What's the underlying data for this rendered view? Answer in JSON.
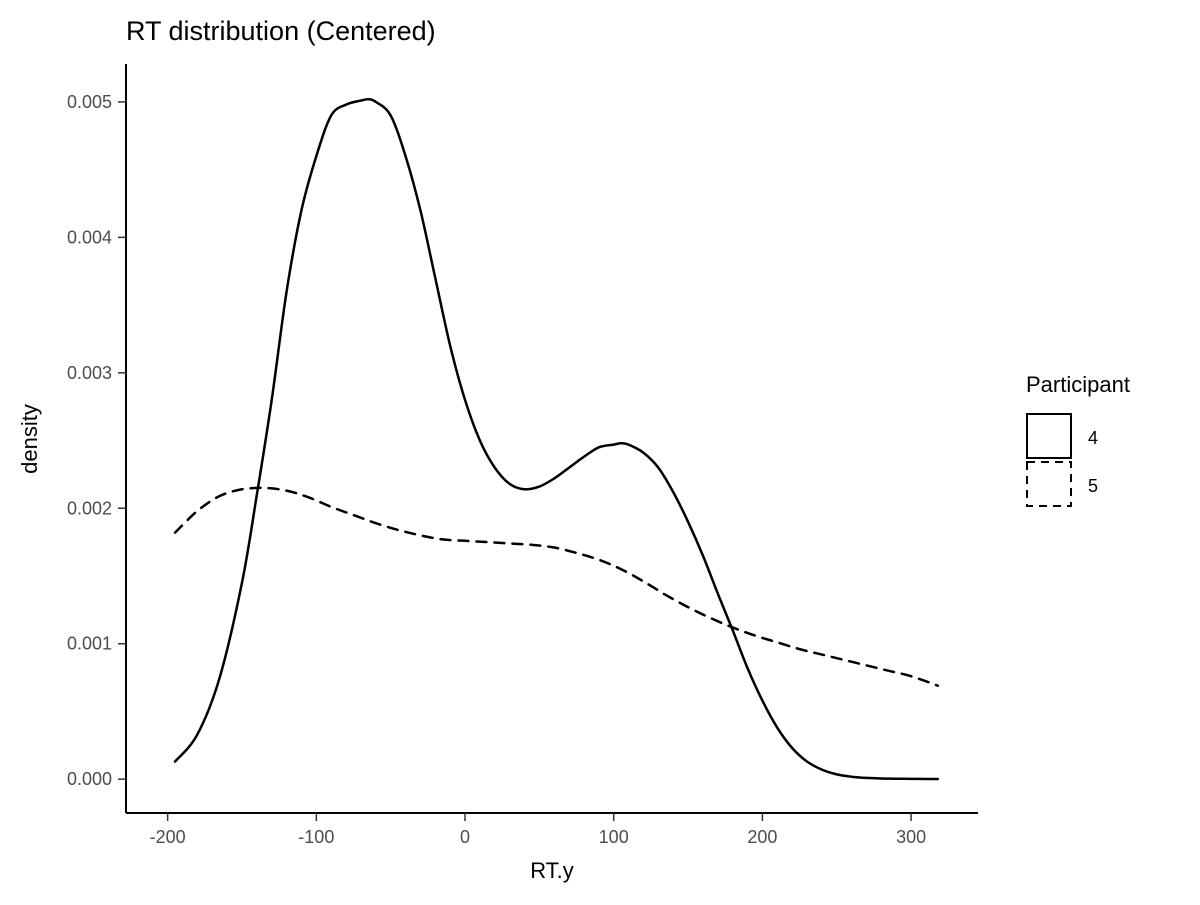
{
  "chart_data": {
    "type": "line",
    "title": "RT distribution (Centered)",
    "xlabel": "RT.y",
    "ylabel": "density",
    "xlim": [
      -228,
      345
    ],
    "ylim": [
      -0.00025,
      0.00528
    ],
    "x_ticks": [
      -200,
      -100,
      0,
      100,
      200,
      300
    ],
    "y_ticks": [
      0.0,
      0.001,
      0.002,
      0.003,
      0.004,
      0.005
    ],
    "x_tick_labels": [
      "-200",
      "-100",
      "0",
      "100",
      "200",
      "300"
    ],
    "y_tick_labels": [
      "0.000",
      "0.001",
      "0.002",
      "0.003",
      "0.004",
      "0.005"
    ],
    "grid": false,
    "legend": {
      "title": "Participant",
      "position": "right"
    },
    "series": [
      {
        "name": "4",
        "line_style": "solid",
        "color": "#000000",
        "x": [
          -195,
          -180,
          -165,
          -150,
          -140,
          -130,
          -120,
          -110,
          -100,
          -90,
          -80,
          -70,
          -65,
          -60,
          -50,
          -40,
          -30,
          -20,
          -10,
          0,
          10,
          20,
          30,
          40,
          50,
          60,
          70,
          80,
          90,
          100,
          105,
          110,
          120,
          130,
          140,
          150,
          160,
          170,
          180,
          190,
          200,
          210,
          220,
          230,
          240,
          250,
          260,
          270,
          280,
          290,
          300,
          310,
          318
        ],
        "y": [
          0.00013,
          0.00033,
          0.00075,
          0.00145,
          0.0021,
          0.0028,
          0.0036,
          0.0042,
          0.0046,
          0.0049,
          0.00498,
          0.00501,
          0.00502,
          0.005,
          0.0049,
          0.0046,
          0.0042,
          0.0037,
          0.0032,
          0.0028,
          0.0025,
          0.0023,
          0.00218,
          0.00214,
          0.00216,
          0.00222,
          0.0023,
          0.00238,
          0.00245,
          0.00247,
          0.00248,
          0.00247,
          0.00241,
          0.0023,
          0.00212,
          0.0019,
          0.00165,
          0.00137,
          0.0011,
          0.00082,
          0.00058,
          0.00038,
          0.00023,
          0.00013,
          7e-05,
          3.5e-05,
          1.8e-05,
          9e-06,
          5e-06,
          3e-06,
          2e-06,
          1e-06,
          1e-06
        ]
      },
      {
        "name": "5",
        "line_style": "dashed",
        "color": "#000000",
        "x": [
          -195,
          -180,
          -165,
          -150,
          -135,
          -120,
          -105,
          -90,
          -75,
          -60,
          -45,
          -30,
          -15,
          0,
          15,
          30,
          45,
          60,
          75,
          90,
          105,
          120,
          135,
          150,
          165,
          180,
          195,
          210,
          225,
          240,
          255,
          270,
          285,
          300,
          318
        ],
        "y": [
          0.00182,
          0.00198,
          0.00209,
          0.00214,
          0.00215,
          0.00213,
          0.00208,
          0.00201,
          0.00195,
          0.00189,
          0.00184,
          0.0018,
          0.00177,
          0.00176,
          0.00175,
          0.00174,
          0.00173,
          0.00171,
          0.00167,
          0.00162,
          0.00155,
          0.00146,
          0.00136,
          0.00127,
          0.00119,
          0.00112,
          0.00106,
          0.00101,
          0.00096,
          0.00092,
          0.00088,
          0.00084,
          0.0008,
          0.00076,
          0.00069
        ]
      }
    ]
  }
}
